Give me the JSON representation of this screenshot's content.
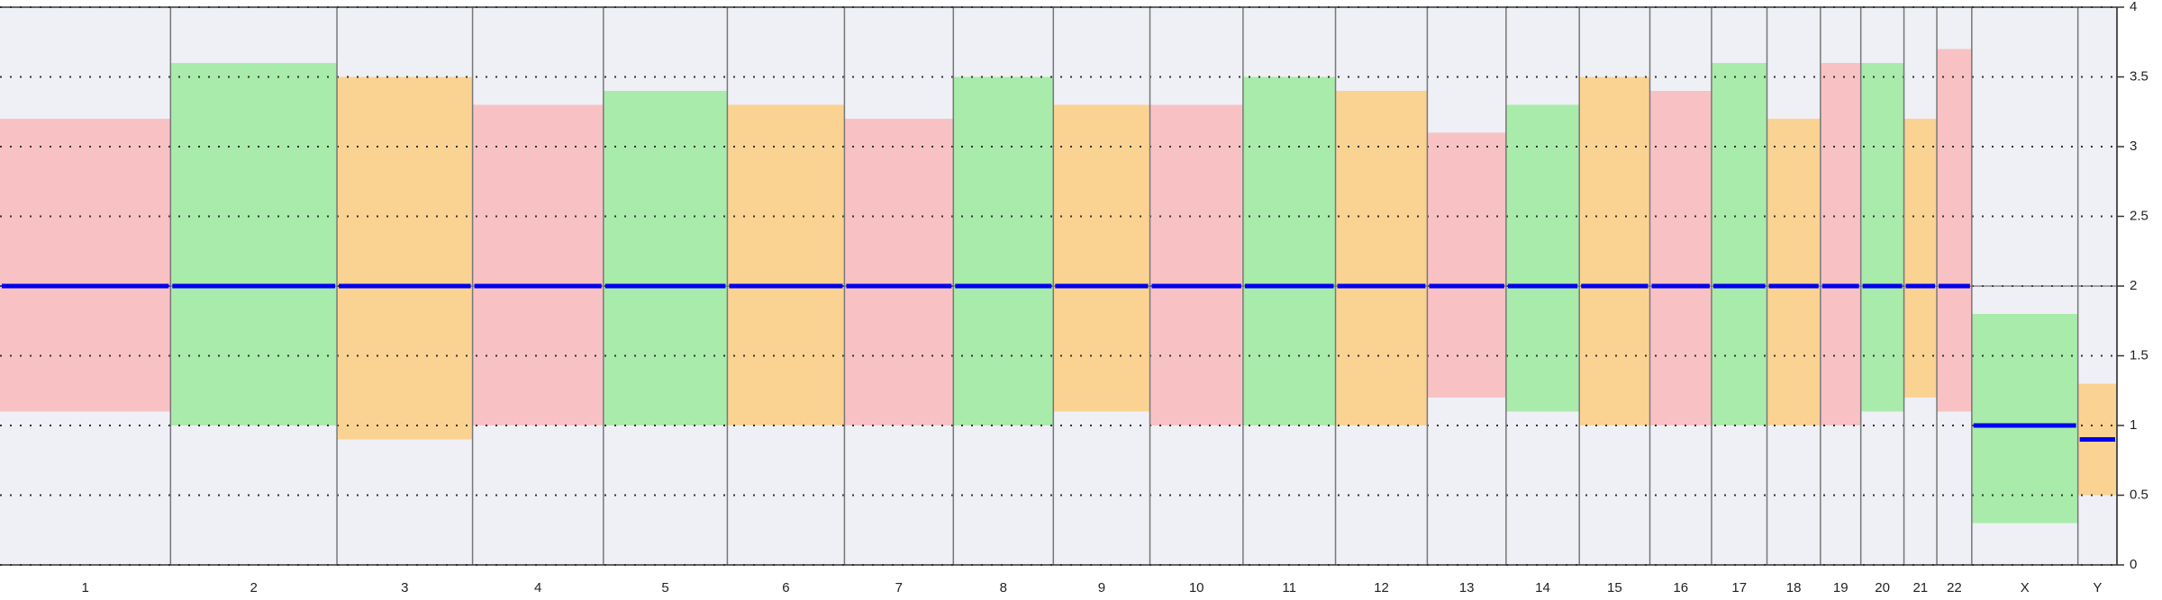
{
  "chart_data": {
    "type": "band",
    "categories": [
      "1",
      "2",
      "3",
      "4",
      "5",
      "6",
      "7",
      "8",
      "9",
      "10",
      "11",
      "12",
      "13",
      "14",
      "15",
      "16",
      "17",
      "18",
      "19",
      "20",
      "21",
      "22",
      "X",
      "Y"
    ],
    "bins": [
      0,
      249,
      492,
      690,
      881,
      1062,
      1233,
      1392,
      1538,
      1679,
      1815,
      1950,
      2084,
      2199,
      2306,
      2409,
      2499,
      2580,
      2658,
      2717,
      2780,
      2828,
      2879,
      3034,
      3091
    ],
    "median": [
      2,
      2,
      2,
      2,
      2,
      2,
      2,
      2,
      2,
      2,
      2,
      2,
      2,
      2,
      2,
      2,
      2,
      2,
      2,
      2,
      2,
      2,
      1,
      0.9
    ],
    "low": [
      1.1,
      1,
      0.9,
      1,
      1,
      1,
      1,
      1,
      1.1,
      1,
      1,
      1,
      1.2,
      1.1,
      1,
      1,
      1,
      1,
      1,
      1.1,
      1.2,
      1.1,
      0.3,
      0.5
    ],
    "high": [
      3.2,
      3.6,
      3.5,
      3.3,
      3.4,
      3.3,
      3.2,
      3.5,
      3.3,
      3.3,
      3.5,
      3.4,
      3.1,
      3.3,
      3.5,
      3.4,
      3.6,
      3.2,
      3.6,
      3.6,
      3.2,
      3.7,
      1.8,
      1.3
    ],
    "reference": 2,
    "xlim": [
      0,
      3091
    ],
    "ylim": [
      0,
      4
    ],
    "yticks": [
      0,
      0.5,
      1,
      1.5,
      2,
      2.5,
      3,
      3.5,
      4
    ],
    "grid": true,
    "colors": [
      "#fbb3b3",
      "#92ea92",
      "#fdca72"
    ],
    "line_color": "#0000ee"
  }
}
